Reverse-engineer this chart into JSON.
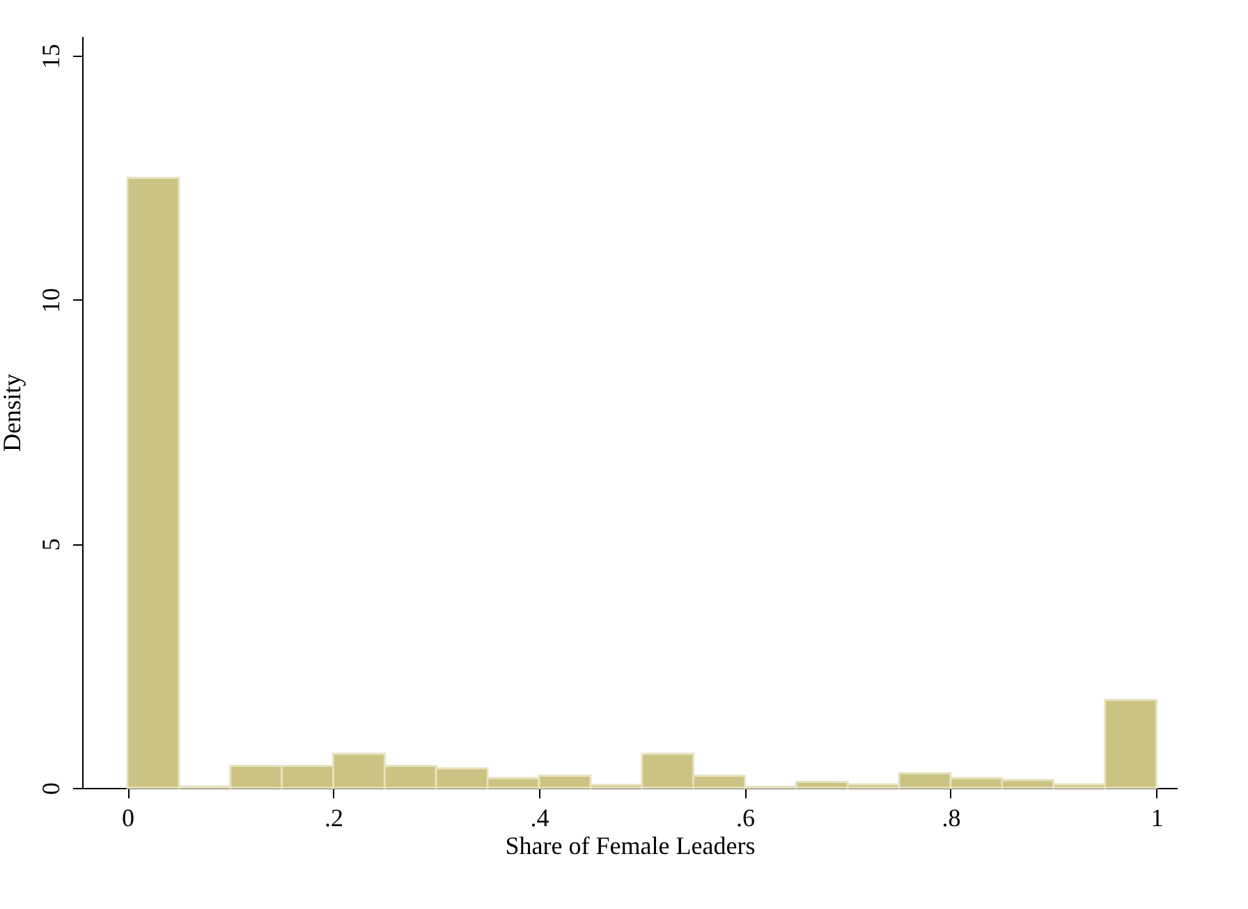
{
  "chart_data": {
    "type": "histogram",
    "xlabel": "Share of Female Leaders",
    "ylabel": "Density",
    "bins": [
      0,
      0.05,
      0.1,
      0.15,
      0.2,
      0.25,
      0.3,
      0.35,
      0.4,
      0.45,
      0.5,
      0.55,
      0.6,
      0.65,
      0.7,
      0.75,
      0.8,
      0.85,
      0.9,
      0.95,
      1
    ],
    "values": [
      12.5,
      0.03,
      0.45,
      0.45,
      0.7,
      0.45,
      0.4,
      0.2,
      0.25,
      0.06,
      0.7,
      0.25,
      0.02,
      0.12,
      0.07,
      0.3,
      0.2,
      0.16,
      0.07,
      1.8
    ],
    "color": "#cbc383",
    "xlim": [
      -0.044,
      1.02
    ],
    "xticks": [
      0,
      {
        "value": 0.2,
        "label": ".2"
      },
      {
        "value": 0.4,
        "label": ".4"
      },
      {
        "value": 0.6,
        "label": ".6"
      },
      {
        "value": 0.8,
        "label": ".8"
      },
      1
    ],
    "ylim": [
      0,
      15.4
    ],
    "yticks": [
      0,
      5,
      10,
      15
    ],
    "grid": false
  }
}
